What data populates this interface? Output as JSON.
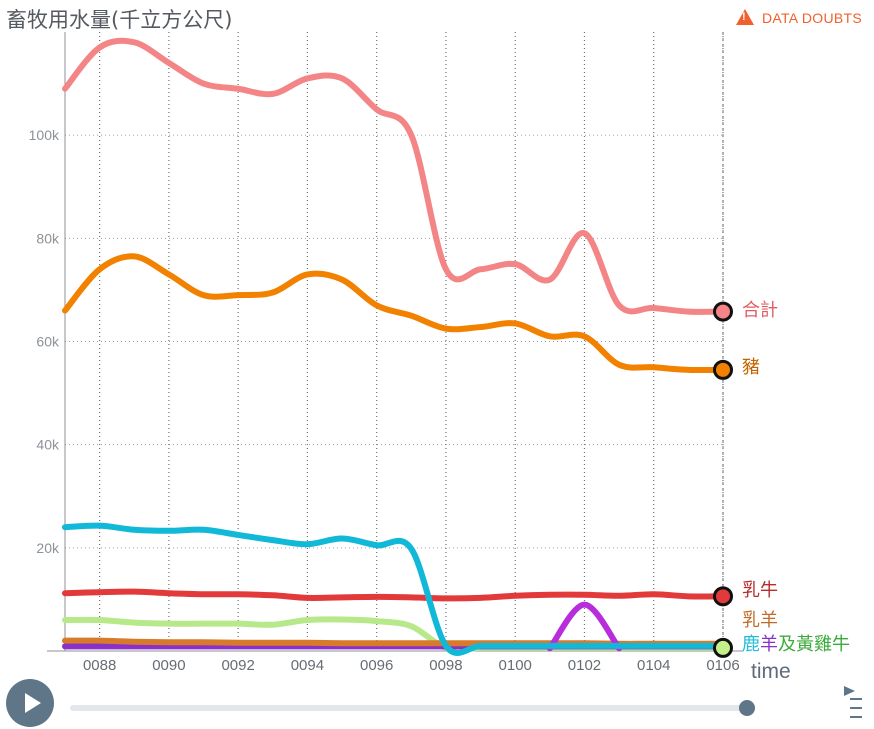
{
  "title": "畜牧用水量(千立方公尺)",
  "doubts_label": "DATA DOUBTS",
  "controls": {
    "play_icon": "play-icon",
    "menu_icon": "menu-icon",
    "time_progress": 1.0
  },
  "chart_data": {
    "type": "line",
    "xlabel": "time",
    "ylabel": "",
    "x": [
      87,
      88,
      89,
      90,
      91,
      92,
      93,
      94,
      95,
      96,
      97,
      98,
      99,
      100,
      101,
      102,
      103,
      104,
      105,
      106
    ],
    "xticks": [
      88,
      90,
      92,
      94,
      96,
      98,
      100,
      102,
      104,
      106
    ],
    "xtick_labels": [
      "0088",
      "0090",
      "0092",
      "0094",
      "0096",
      "0098",
      "0100",
      "0102",
      "0104",
      "0106"
    ],
    "xlim": [
      87,
      106.3
    ],
    "yticks": [
      20000,
      40000,
      60000,
      80000,
      100000
    ],
    "ytick_labels": [
      "20k",
      "40k",
      "60k",
      "80k",
      "100k"
    ],
    "ylim": [
      0,
      120000
    ],
    "grid": true,
    "series": [
      {
        "name": "合計",
        "color": "#f48587",
        "label_color": "#e05c64",
        "values": [
          109000,
          117000,
          118000,
          114000,
          110000,
          109000,
          108000,
          111000,
          111000,
          105000,
          100000,
          74000,
          74000,
          75000,
          72000,
          81000,
          67000,
          66500,
          65800,
          65800
        ]
      },
      {
        "name": "豬",
        "color": "#f28100",
        "label_color": "#c26500",
        "values": [
          66000,
          74000,
          76500,
          73000,
          69000,
          69000,
          69500,
          73000,
          72000,
          67000,
          65000,
          62500,
          62800,
          63500,
          61000,
          61000,
          55500,
          55000,
          54500,
          54500
        ]
      },
      {
        "name": "",
        "color": "#11b8d8",
        "label_color": "#11b8d8",
        "values": [
          24000,
          24300,
          23500,
          23300,
          23500,
          22500,
          21500,
          20700,
          21800,
          20500,
          19800,
          1000,
          1000,
          1000,
          1000,
          1000,
          1000,
          1000,
          1000,
          1000
        ]
      },
      {
        "name": "乳牛",
        "color": "#e23a3a",
        "label_color": "#b82c2c",
        "values": [
          11200,
          11400,
          11500,
          11200,
          11000,
          11000,
          10800,
          10300,
          10400,
          10500,
          10400,
          10200,
          10300,
          10700,
          10900,
          10900,
          10700,
          11000,
          10600,
          10600
        ]
      },
      {
        "name": "",
        "color": "#b82ddb",
        "label_color": "#b82ddb",
        "values": [
          null,
          null,
          null,
          null,
          null,
          null,
          null,
          null,
          null,
          null,
          null,
          null,
          null,
          null,
          500,
          9000,
          500,
          null,
          null,
          null
        ]
      },
      {
        "name": "乳羊",
        "color": "#d77a2c",
        "label_color": "#c26a26",
        "values": [
          2000,
          2000,
          1800,
          1700,
          1700,
          1600,
          1600,
          1600,
          1500,
          1500,
          1500,
          1500,
          1500,
          1500,
          1500,
          1500,
          1400,
          1400,
          1400,
          1400
        ]
      },
      {
        "name": "鹿",
        "color": "#22bcd9",
        "label_color": "#22bcd9",
        "values": [
          null,
          null,
          null,
          null,
          null,
          null,
          null,
          null,
          null,
          null,
          null,
          null,
          null,
          null,
          null,
          null,
          null,
          null,
          null,
          900
        ]
      },
      {
        "name": "羊",
        "color": "#8b2fc9",
        "label_color": "#8b2fc9",
        "values": [
          900,
          900,
          900,
          900,
          900,
          900,
          900,
          900,
          900,
          900,
          900,
          900,
          900,
          900,
          900,
          900,
          900,
          900,
          900,
          900
        ]
      },
      {
        "name": "及黃雞牛",
        "color": "#b7e88a",
        "label_color": "#3cab3c",
        "values": [
          6000,
          6000,
          5500,
          5300,
          5300,
          5300,
          5100,
          6000,
          6100,
          5800,
          4800,
          600,
          600,
          600,
          600,
          600,
          600,
          600,
          600,
          600
        ]
      }
    ],
    "end_markers": [
      {
        "series": "合計",
        "color": "#f48587"
      },
      {
        "series": "豬",
        "color": "#f28100"
      },
      {
        "series": "乳牛",
        "color": "#e23a3a"
      },
      {
        "series": "及黃雞牛",
        "color": "#c4f08a"
      }
    ]
  }
}
